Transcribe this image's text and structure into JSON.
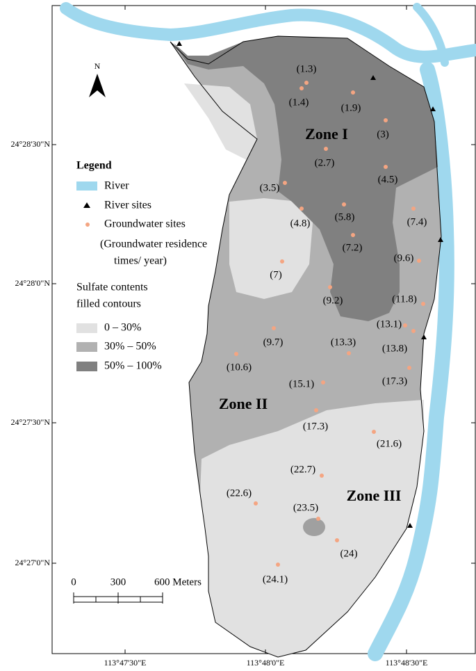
{
  "north": "N",
  "zones": [
    "Zone I",
    "Zone II",
    "Zone III"
  ],
  "legend": {
    "title": "Legend",
    "river": "River",
    "river_sites": "River sites",
    "groundwater_sites": "Groundwater sites",
    "residence_note": [
      "(Groundwater residence",
      "times/ year)"
    ],
    "sulfate_title": [
      "Sulfate contents",
      "filled contours"
    ],
    "classes": [
      "0 – 30%",
      "30% – 50%",
      "50% – 100%"
    ]
  },
  "sites": [
    "(1.3)",
    "(1.4)",
    "(1.9)",
    "(3)",
    "(2.7)",
    "(4.5)",
    "(3.5)",
    "(4.8)",
    "(5.8)",
    "(7.4)",
    "(7.2)",
    "(9.6)",
    "(7)",
    "(9.2)",
    "(11.8)",
    "(13.1)",
    "(9.7)",
    "(13.3)",
    "(13.8)",
    "(10.6)",
    "(15.1)",
    "(17.3)",
    "(17.3)",
    "(21.6)",
    "(22.7)",
    "(22.6)",
    "(23.5)",
    "(24)",
    "(24.1)"
  ],
  "scale_bar": [
    "0",
    "300",
    "600 Meters"
  ],
  "latitude_labels": [
    "24°28'30\"N",
    "24°28'0\"N",
    "24°27'30\"N",
    "24°27'0\"N"
  ],
  "longitude_labels": [
    "113°47'30\"E",
    "113°48'0\"E",
    "113°48'30\"E"
  ]
}
